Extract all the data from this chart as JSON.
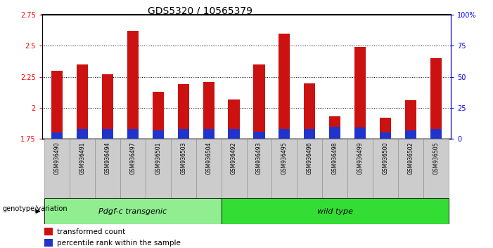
{
  "title": "GDS5320 / 10565379",
  "samples": [
    "GSM936490",
    "GSM936491",
    "GSM936494",
    "GSM936497",
    "GSM936501",
    "GSM936503",
    "GSM936504",
    "GSM936492",
    "GSM936493",
    "GSM936495",
    "GSM936496",
    "GSM936498",
    "GSM936499",
    "GSM936500",
    "GSM936502",
    "GSM936505"
  ],
  "transformed_count": [
    2.3,
    2.35,
    2.27,
    2.62,
    2.13,
    2.19,
    2.21,
    2.07,
    2.35,
    2.6,
    2.2,
    1.93,
    2.49,
    1.92,
    2.06,
    2.4
  ],
  "percentile_rank": [
    5,
    8,
    8,
    8,
    7,
    8,
    8,
    8,
    6,
    8,
    8,
    10,
    9,
    5,
    7,
    8
  ],
  "groups": [
    {
      "label": "Pdgf-c transgenic",
      "start": 0,
      "end": 7,
      "color": "#90EE90"
    },
    {
      "label": "wild type",
      "start": 7,
      "end": 16,
      "color": "#33DD33"
    }
  ],
  "ylim_left": [
    1.75,
    2.75
  ],
  "ylim_right": [
    0,
    100
  ],
  "yticks_left": [
    1.75,
    2.0,
    2.25,
    2.5,
    2.75
  ],
  "yticks_right": [
    0,
    25,
    50,
    75,
    100
  ],
  "bar_color_red": "#CC1111",
  "bar_color_blue": "#2233CC",
  "bar_width": 0.45,
  "background_color": "#ffffff",
  "genotype_label": "genotype/variation",
  "legend_red": "transformed count",
  "legend_blue": "percentile rank within the sample",
  "title_fontsize": 10,
  "tick_fontsize": 7,
  "label_fontsize": 8,
  "n_transgenic": 7,
  "n_total": 16
}
